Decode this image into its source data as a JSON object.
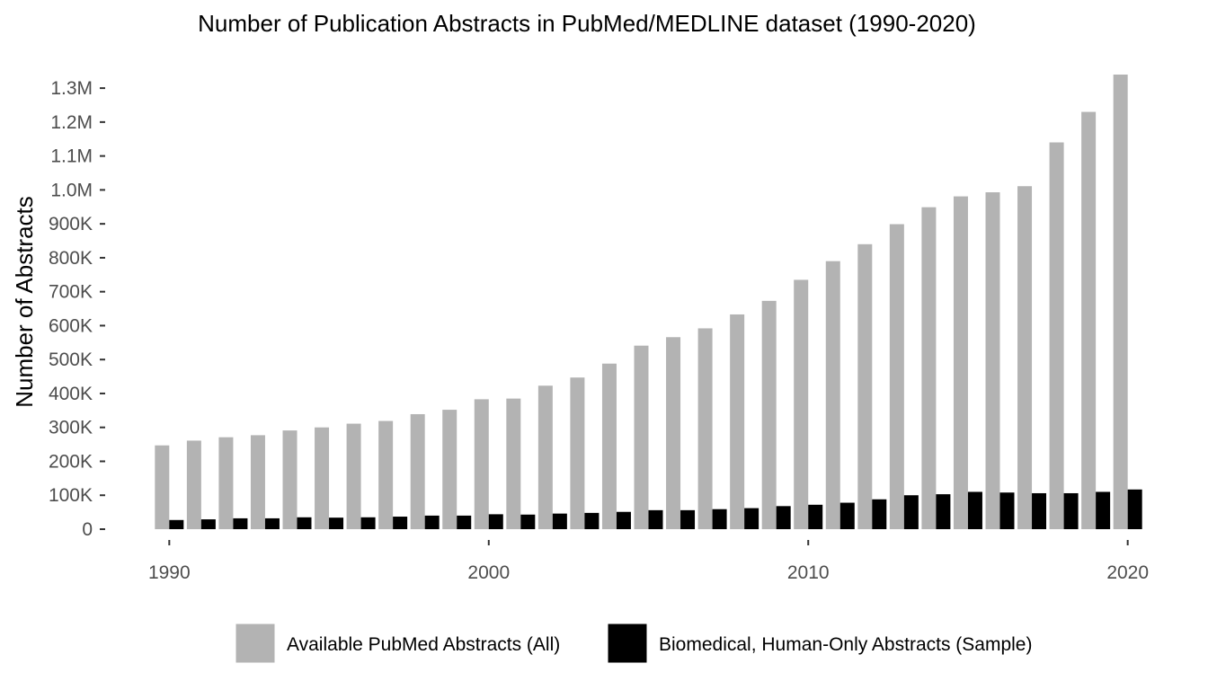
{
  "chart_data": {
    "type": "bar",
    "title": "Number of Publication Abstracts in PubMed/MEDLINE dataset (1990-2020)",
    "xlabel": "",
    "ylabel": "Number of Abstracts",
    "x": [
      1990,
      1991,
      1992,
      1993,
      1994,
      1995,
      1996,
      1997,
      1998,
      1999,
      2000,
      2001,
      2002,
      2003,
      2004,
      2005,
      2006,
      2007,
      2008,
      2009,
      2010,
      2011,
      2012,
      2013,
      2014,
      2015,
      2016,
      2017,
      2018,
      2019,
      2020
    ],
    "x_ticks": [
      1990,
      2000,
      2010,
      2020
    ],
    "x_tick_labels": [
      "1990",
      "2000",
      "2010",
      "2020"
    ],
    "xlim": [
      1989.4,
      2020.6
    ],
    "ylim": [
      0,
      1340000
    ],
    "y_ticks": [
      0,
      100000,
      200000,
      300000,
      400000,
      500000,
      600000,
      700000,
      800000,
      900000,
      1000000,
      1100000,
      1200000,
      1300000
    ],
    "y_tick_labels": [
      "0",
      "100K",
      "200K",
      "300K",
      "400K",
      "500K",
      "600K",
      "700K",
      "800K",
      "900K",
      "1.0M",
      "1.1M",
      "1.2M",
      "1.3M"
    ],
    "grid": false,
    "legend_position": "bottom",
    "series": [
      {
        "name": "Available PubMed Abstracts (All)",
        "color": "#b3b3b3",
        "values": [
          247000,
          261000,
          271000,
          277000,
          291000,
          300000,
          311000,
          319000,
          339000,
          352000,
          383000,
          385000,
          423000,
          447000,
          488000,
          541000,
          566000,
          592000,
          633000,
          673000,
          735000,
          790000,
          840000,
          899000,
          949000,
          981000,
          993000,
          1011000,
          1140000,
          1230000,
          1340000
        ]
      },
      {
        "name": "Biomedical, Human-Only Abstracts (Sample)",
        "color": "#000000",
        "values": [
          27000,
          29000,
          32000,
          32000,
          35000,
          34000,
          35000,
          37000,
          40000,
          40000,
          44000,
          43000,
          46000,
          48000,
          51000,
          56000,
          56000,
          59000,
          62000,
          68000,
          72000,
          78000,
          88000,
          100000,
          103000,
          110000,
          108000,
          106000,
          106000,
          110000,
          117000
        ]
      }
    ]
  }
}
